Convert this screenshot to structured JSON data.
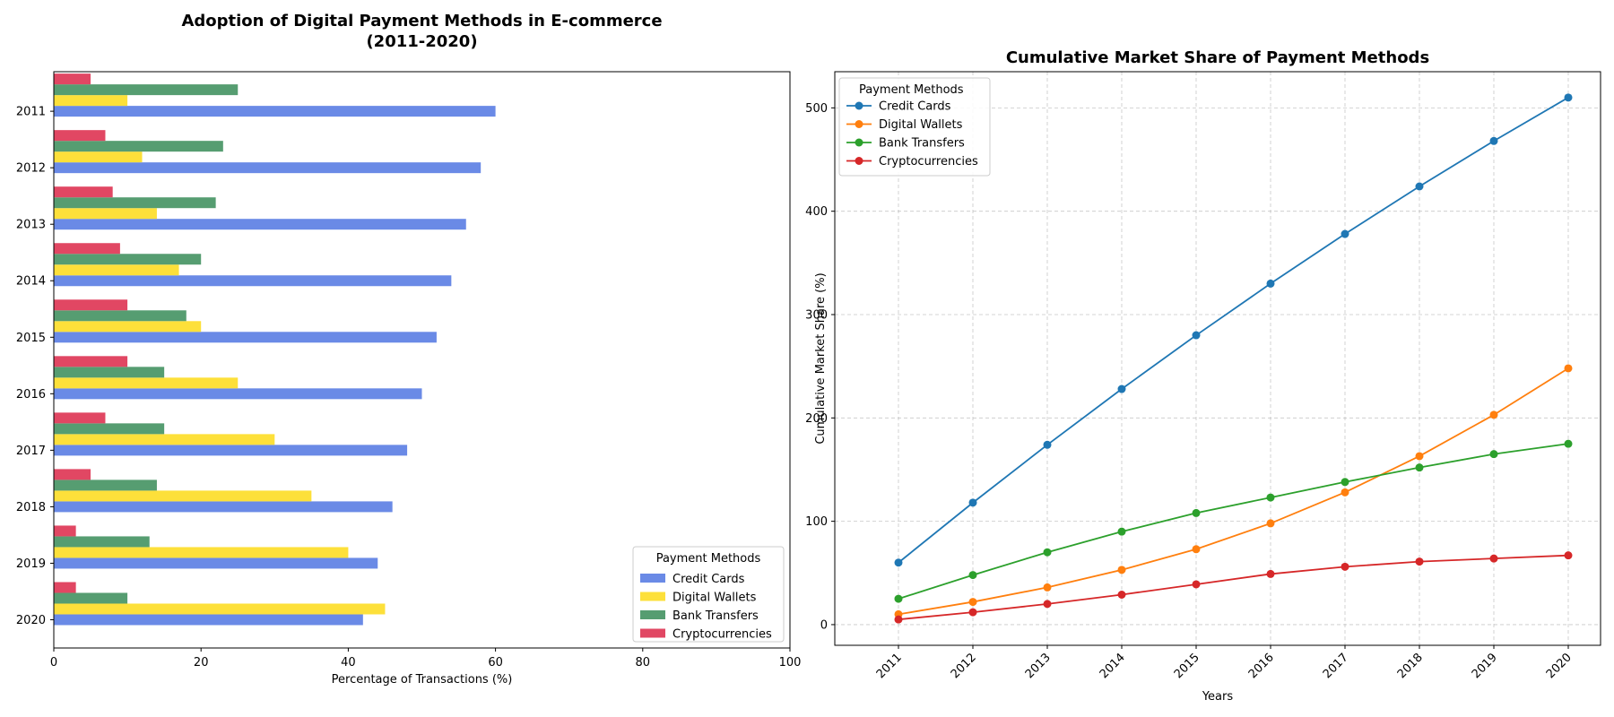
{
  "chart_data": [
    {
      "type": "bar",
      "orientation": "horizontal",
      "title": "Adoption of Digital Payment Methods in E-commerce\n(2011-2020)",
      "xlabel": "Percentage of Transactions (%)",
      "ylabel": "",
      "xlim": [
        0,
        100
      ],
      "xticks": [
        0,
        20,
        40,
        60,
        80,
        100
      ],
      "categories": [
        "2011",
        "2012",
        "2013",
        "2014",
        "2015",
        "2016",
        "2017",
        "2018",
        "2019",
        "2020"
      ],
      "series": [
        {
          "name": "Credit Cards",
          "color": "#6a8ae6",
          "values": [
            60,
            58,
            56,
            54,
            52,
            50,
            48,
            46,
            44,
            42
          ]
        },
        {
          "name": "Digital Wallets",
          "color": "#fde03a",
          "values": [
            10,
            12,
            14,
            17,
            20,
            25,
            30,
            35,
            40,
            45
          ]
        },
        {
          "name": "Bank Transfers",
          "color": "#569d71",
          "values": [
            25,
            23,
            22,
            20,
            18,
            15,
            15,
            14,
            13,
            10
          ]
        },
        {
          "name": "Cryptocurrencies",
          "color": "#e14763",
          "values": [
            5,
            7,
            8,
            9,
            10,
            10,
            7,
            5,
            3,
            3
          ]
        }
      ],
      "legend": {
        "title": "Payment Methods",
        "position": "lower-right"
      },
      "grid": false
    },
    {
      "type": "line",
      "title": "Cumulative Market Share of Payment Methods",
      "xlabel": "Years",
      "ylabel": "Cumulative Market Share (%)",
      "x": [
        "2011",
        "2012",
        "2013",
        "2014",
        "2015",
        "2016",
        "2017",
        "2018",
        "2019",
        "2020"
      ],
      "yticks": [
        0,
        100,
        200,
        300,
        400,
        500
      ],
      "ylim": [
        -20,
        535
      ],
      "series": [
        {
          "name": "Credit Cards",
          "color": "#1f77b4",
          "values": [
            60,
            118,
            174,
            228,
            280,
            330,
            378,
            424,
            468,
            510
          ]
        },
        {
          "name": "Digital Wallets",
          "color": "#ff7f0e",
          "values": [
            10,
            22,
            36,
            53,
            73,
            98,
            128,
            163,
            203,
            248
          ]
        },
        {
          "name": "Bank Transfers",
          "color": "#2ca02c",
          "values": [
            25,
            48,
            70,
            90,
            108,
            123,
            138,
            152,
            165,
            175
          ]
        },
        {
          "name": "Cryptocurrencies",
          "color": "#d62728",
          "values": [
            5,
            12,
            20,
            29,
            39,
            49,
            56,
            61,
            64,
            67
          ]
        }
      ],
      "legend": {
        "title": "Payment Methods",
        "position": "upper-left"
      },
      "grid": true
    }
  ]
}
